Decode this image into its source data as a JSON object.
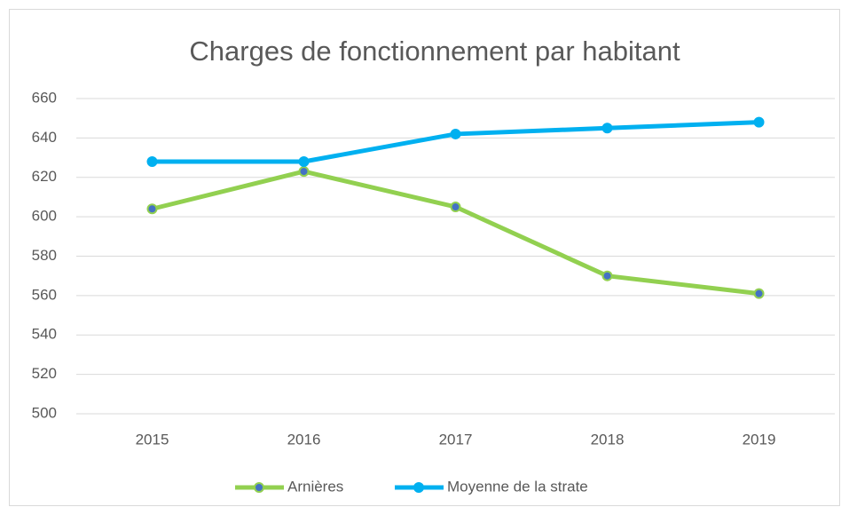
{
  "chart_data": {
    "type": "line",
    "title": "Charges de fonctionnement par habitant",
    "categories": [
      "2015",
      "2016",
      "2017",
      "2018",
      "2019"
    ],
    "series": [
      {
        "name": "Arnières",
        "color": "#92d050",
        "marker_fill": "#4472c4",
        "values": [
          604,
          623,
          605,
          570,
          561
        ]
      },
      {
        "name": "Moyenne de la strate",
        "color": "#00b0f0",
        "marker_fill": "#00b0f0",
        "values": [
          628,
          628,
          642,
          645,
          648
        ]
      }
    ],
    "ylim": [
      500,
      660
    ],
    "yticks": [
      500,
      520,
      540,
      560,
      580,
      600,
      620,
      640,
      660
    ],
    "grid": true,
    "legend": "bottom"
  }
}
